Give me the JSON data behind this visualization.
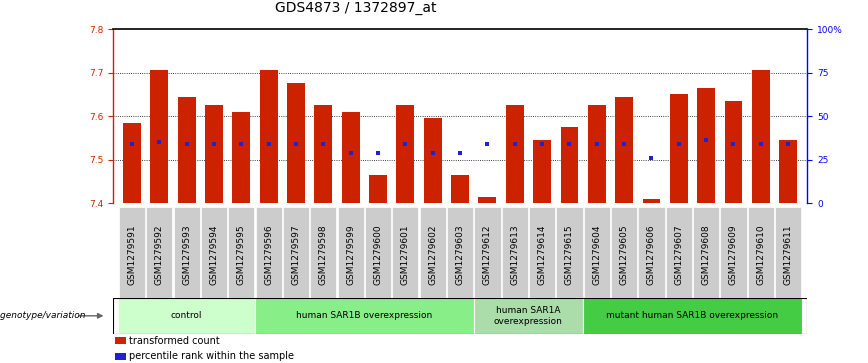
{
  "title": "GDS4873 / 1372897_at",
  "samples": [
    "GSM1279591",
    "GSM1279592",
    "GSM1279593",
    "GSM1279594",
    "GSM1279595",
    "GSM1279596",
    "GSM1279597",
    "GSM1279598",
    "GSM1279599",
    "GSM1279600",
    "GSM1279601",
    "GSM1279602",
    "GSM1279603",
    "GSM1279612",
    "GSM1279613",
    "GSM1279614",
    "GSM1279615",
    "GSM1279604",
    "GSM1279605",
    "GSM1279606",
    "GSM1279607",
    "GSM1279608",
    "GSM1279609",
    "GSM1279610",
    "GSM1279611"
  ],
  "bar_values": [
    7.585,
    7.705,
    7.645,
    7.625,
    7.61,
    7.705,
    7.675,
    7.625,
    7.61,
    7.465,
    7.625,
    7.595,
    7.465,
    7.415,
    7.625,
    7.545,
    7.575,
    7.625,
    7.645,
    7.41,
    7.65,
    7.665,
    7.635,
    7.705,
    7.545
  ],
  "blue_dot_values": [
    7.535,
    7.54,
    7.535,
    7.535,
    7.535,
    7.535,
    7.535,
    7.535,
    7.515,
    7.515,
    7.535,
    7.515,
    7.515,
    7.535,
    7.535,
    7.535,
    7.535,
    7.535,
    7.535,
    7.505,
    7.535,
    7.545,
    7.535,
    7.535,
    7.535
  ],
  "ymin": 7.4,
  "ymax": 7.8,
  "yticks": [
    7.4,
    7.5,
    7.6,
    7.7,
    7.8
  ],
  "right_yticks": [
    0,
    25,
    50,
    75,
    100
  ],
  "right_ytick_labels": [
    "0",
    "25",
    "50",
    "75",
    "100%"
  ],
  "bar_color": "#cc2200",
  "dot_color": "#2222cc",
  "bar_width": 0.65,
  "groups": [
    {
      "label": "control",
      "start": 0,
      "end": 5,
      "color": "#ccffcc"
    },
    {
      "label": "human SAR1B overexpression",
      "start": 5,
      "end": 13,
      "color": "#88ee88"
    },
    {
      "label": "human SAR1A\noverexpression",
      "start": 13,
      "end": 17,
      "color": "#aaddaa"
    },
    {
      "label": "mutant human SAR1B overexpression",
      "start": 17,
      "end": 25,
      "color": "#44cc44"
    }
  ],
  "group_row_label": "genotype/variation",
  "legend_items": [
    {
      "color": "#cc2200",
      "label": "transformed count"
    },
    {
      "color": "#2222cc",
      "label": "percentile rank within the sample"
    }
  ],
  "title_fontsize": 10,
  "tick_fontsize": 6.5,
  "label_fontsize": 7.5
}
